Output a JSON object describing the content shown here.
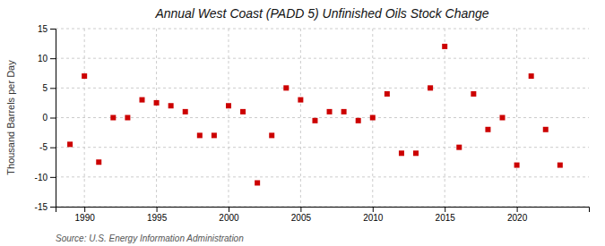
{
  "chart_data": {
    "type": "scatter",
    "title": "Annual West Coast (PADD 5) Unfinished Oils Stock Change",
    "ylabel": "Thousand Barrels per Day",
    "source": "Source: U.S. Energy Information Administration",
    "x": [
      1989,
      1990,
      1991,
      1992,
      1993,
      1994,
      1995,
      1996,
      1997,
      1998,
      1999,
      2000,
      2001,
      2002,
      2003,
      2004,
      2005,
      2006,
      2007,
      2008,
      2009,
      2010,
      2011,
      2012,
      2013,
      2014,
      2015,
      2016,
      2017,
      2018,
      2019,
      2020,
      2021,
      2022,
      2023
    ],
    "values": [
      -4.5,
      7.0,
      -7.5,
      0.0,
      0.0,
      3.0,
      2.5,
      2.0,
      1.0,
      -3.0,
      -3.0,
      2.0,
      1.0,
      -11.0,
      -3.0,
      5.0,
      3.0,
      -0.5,
      1.0,
      1.0,
      -0.5,
      0.0,
      4.0,
      -6.0,
      -6.0,
      5.0,
      12.0,
      -5.0,
      4.0,
      -2.0,
      0.0,
      -8.0,
      7.0,
      -2.0,
      -8.0
    ],
    "color": "#cc0000",
    "marker": "square",
    "xlim": [
      1988,
      2025
    ],
    "xticks": [
      1990,
      1995,
      2000,
      2005,
      2010,
      2015,
      2020
    ],
    "ylim": [
      -15,
      15
    ],
    "yticks": [
      -15,
      -10,
      -5,
      0,
      5,
      10,
      15
    ],
    "grid": true
  }
}
